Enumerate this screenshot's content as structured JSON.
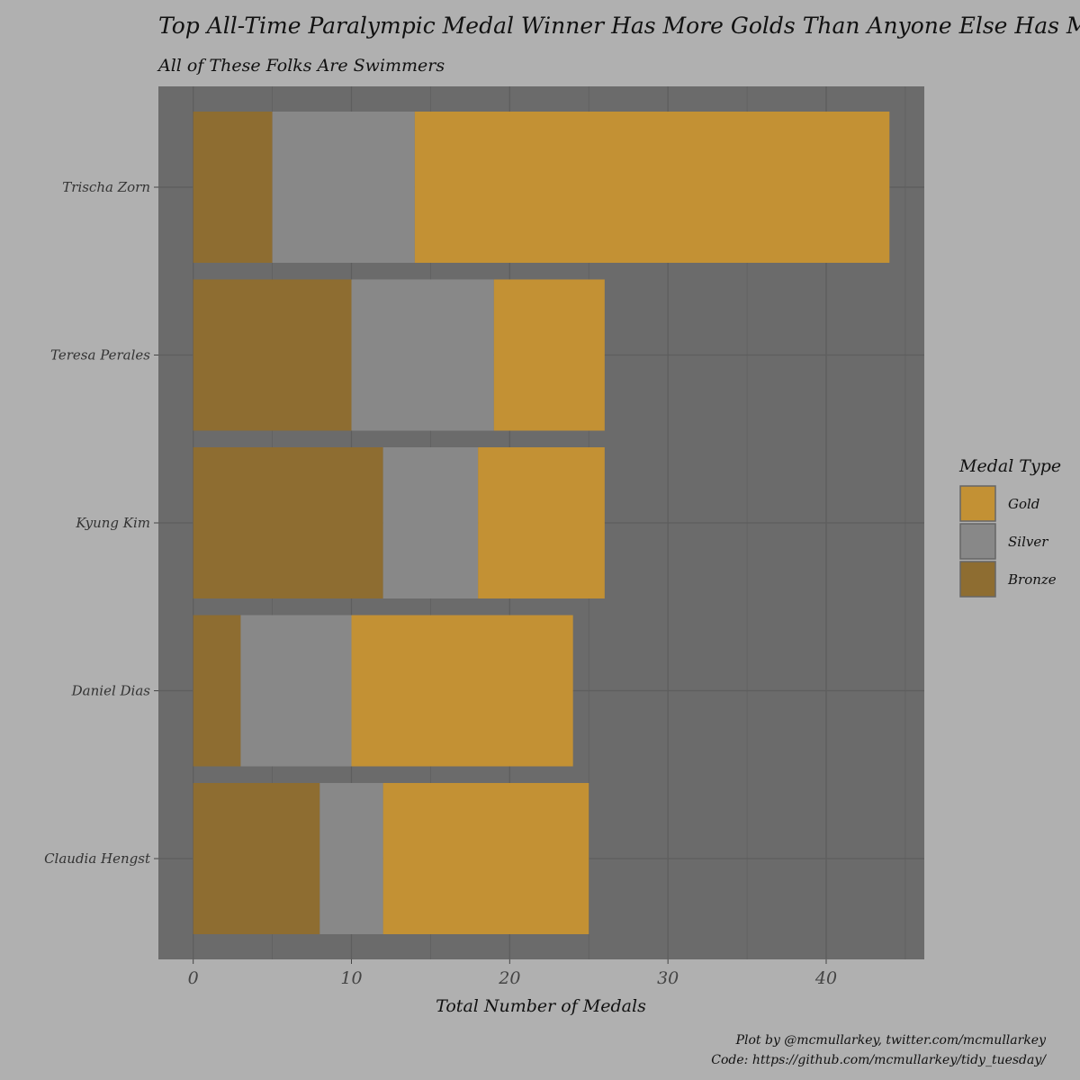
{
  "chart_data": {
    "type": "bar",
    "orientation": "horizontal",
    "stacked": true,
    "title": "Top All-Time Paralympic Medal Winner Has More Golds Than Anyone Else Has Medals",
    "subtitle": "All of These Folks Are Swimmers",
    "xlabel": "Total Number of Medals",
    "ylabel": "",
    "categories": [
      "Trischa Zorn",
      "Teresa Perales",
      "Kyung Kim",
      "Daniel Dias",
      "Claudia Hengst"
    ],
    "series": [
      {
        "name": "Bronze",
        "color": "#8e6d31",
        "values": [
          5,
          10,
          12,
          3,
          8
        ]
      },
      {
        "name": "Silver",
        "color": "#888888",
        "values": [
          9,
          9,
          6,
          7,
          4
        ]
      },
      {
        "name": "Gold",
        "color": "#c39134",
        "values": [
          30,
          7,
          8,
          14,
          13
        ]
      }
    ],
    "xlim": [
      -2.2,
      46.2
    ],
    "xticks": [
      0,
      10,
      20,
      30,
      40
    ],
    "grid": true,
    "legend": {
      "title": "Medal Type",
      "position": "right",
      "entries": [
        "Gold",
        "Silver",
        "Bronze"
      ]
    },
    "caption": [
      "Plot by @mcmullarkey, twitter.com/mcmullarkey",
      "Code: https://github.com/mcmullarkey/tidy_tuesday/"
    ],
    "colors": {
      "background": "#b0b0b0",
      "panel": "#6b6b6b",
      "gridline": "#5e5e5e"
    }
  }
}
